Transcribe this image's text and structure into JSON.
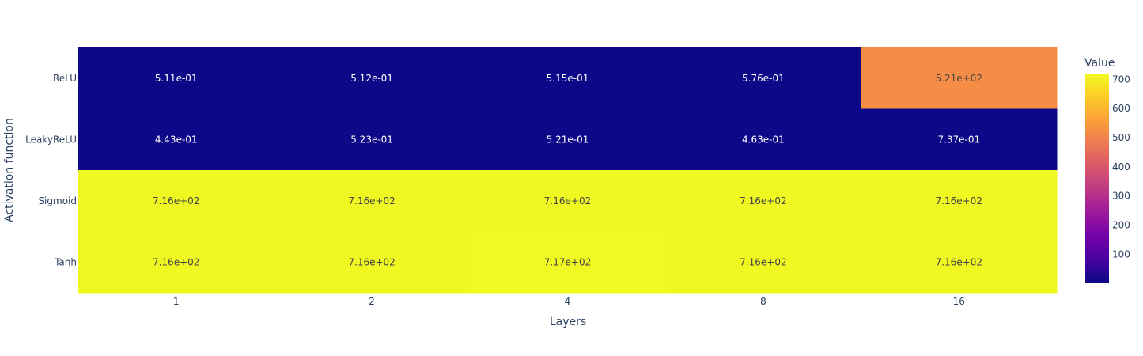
{
  "chart_data": {
    "type": "heatmap",
    "title": "",
    "xlabel": "Layers",
    "ylabel": "Activation function",
    "x_categories": [
      "1",
      "2",
      "4",
      "8",
      "16"
    ],
    "y_categories": [
      "ReLU",
      "LeakyReLU",
      "Sigmoid",
      "Tanh"
    ],
    "values": [
      [
        0.511,
        0.512,
        0.515,
        0.576,
        521
      ],
      [
        0.443,
        0.523,
        0.521,
        0.463,
        0.737
      ],
      [
        716,
        716,
        716,
        716,
        716
      ],
      [
        716,
        716,
        717,
        716,
        716
      ]
    ],
    "cell_labels": [
      [
        "5.11e-01",
        "5.12e-01",
        "5.15e-01",
        "5.76e-01",
        "5.21e+02"
      ],
      [
        "4.43e-01",
        "5.23e-01",
        "5.21e-01",
        "4.63e-01",
        "7.37e-01"
      ],
      [
        "7.16e+02",
        "7.16e+02",
        "7.16e+02",
        "7.16e+02",
        "7.16e+02"
      ],
      [
        "7.16e+02",
        "7.16e+02",
        "7.17e+02",
        "7.16e+02",
        "7.16e+02"
      ]
    ],
    "colorbar": {
      "title": "Value",
      "tick_values": [
        100,
        200,
        300,
        400,
        500,
        600,
        700
      ],
      "tick_labels": [
        "100",
        "200",
        "300",
        "400",
        "500",
        "600",
        "700"
      ],
      "range": [
        0.443,
        717
      ],
      "colorscale": [
        "#0d0887",
        "#46039f",
        "#7201a8",
        "#9c179e",
        "#bd3786",
        "#d8576b",
        "#ed7953",
        "#fb9f3a",
        "#fdca26",
        "#f0f921"
      ]
    }
  }
}
